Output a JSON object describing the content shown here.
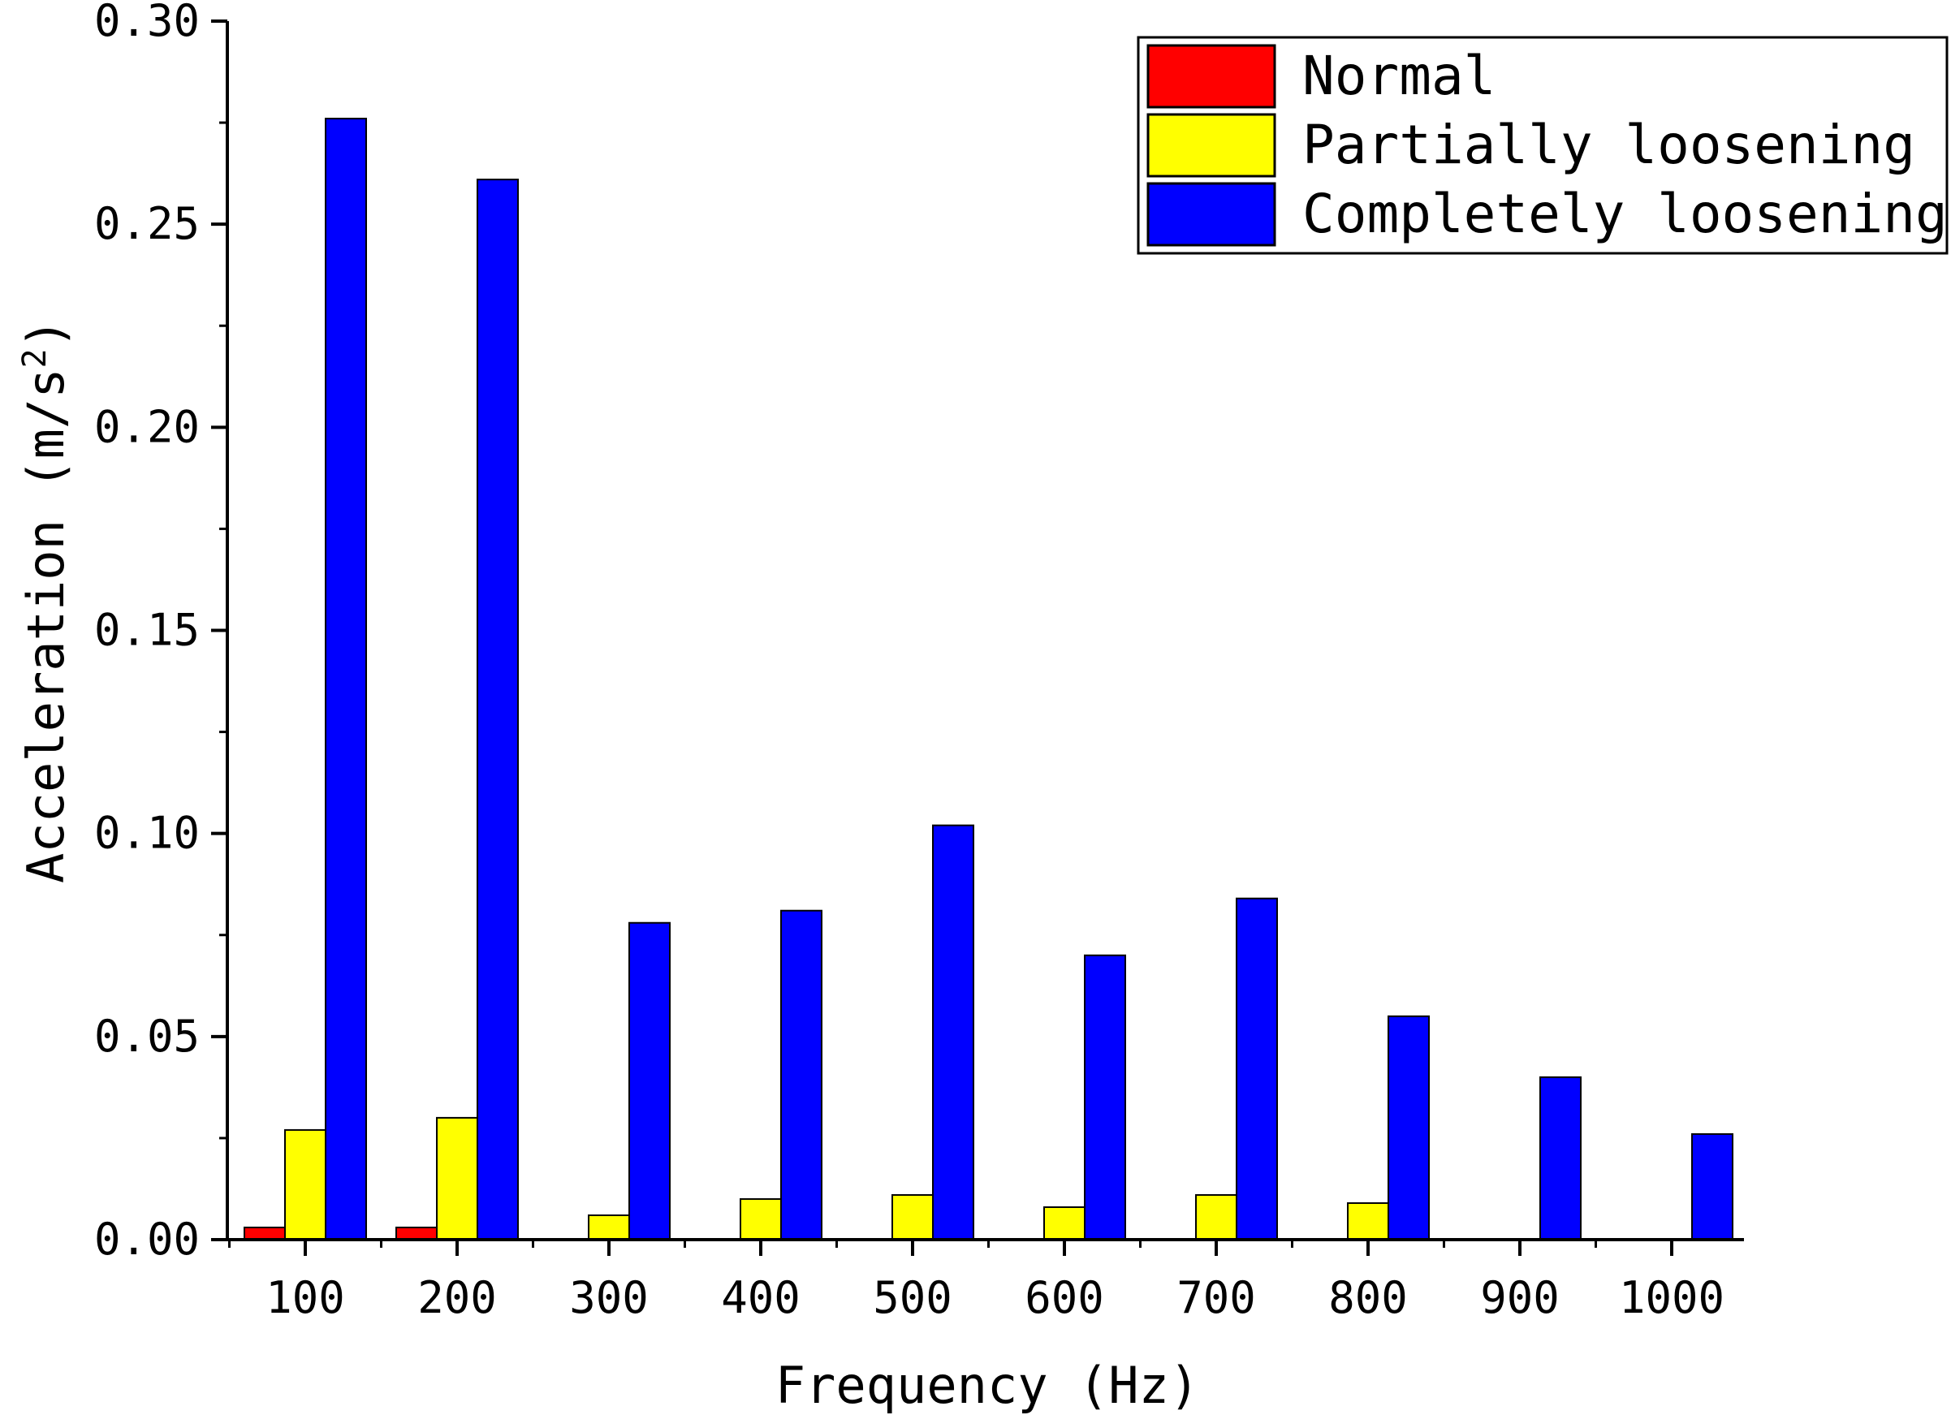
{
  "chart_data": {
    "type": "bar",
    "xlabel": "Frequency (Hz)",
    "ylabel": {
      "text": "Acceleration (m/s",
      "superscript": "2",
      "suffix": ")"
    },
    "categories": [
      "100",
      "200",
      "300",
      "400",
      "500",
      "600",
      "700",
      "800",
      "900",
      "1000"
    ],
    "series": [
      {
        "name": "Normal",
        "color": "#ff0000",
        "values": [
          0.003,
          0.003,
          0,
          0,
          0,
          0,
          0,
          0,
          0,
          0
        ]
      },
      {
        "name": "Partially loosening",
        "color": "#ffff00",
        "values": [
          0.027,
          0.03,
          0.006,
          0.01,
          0.011,
          0.008,
          0.011,
          0.009,
          0,
          0
        ]
      },
      {
        "name": "Completely loosening",
        "color": "#0000ff",
        "values": [
          0.276,
          0.261,
          0.078,
          0.081,
          0.102,
          0.07,
          0.084,
          0.055,
          0.04,
          0.026
        ]
      }
    ],
    "ylim": [
      0,
      0.3
    ],
    "yticks": [
      "0.00",
      "0.05",
      "0.10",
      "0.15",
      "0.20",
      "0.25",
      "0.30"
    ],
    "grid": false,
    "legend_position": "top-right"
  }
}
